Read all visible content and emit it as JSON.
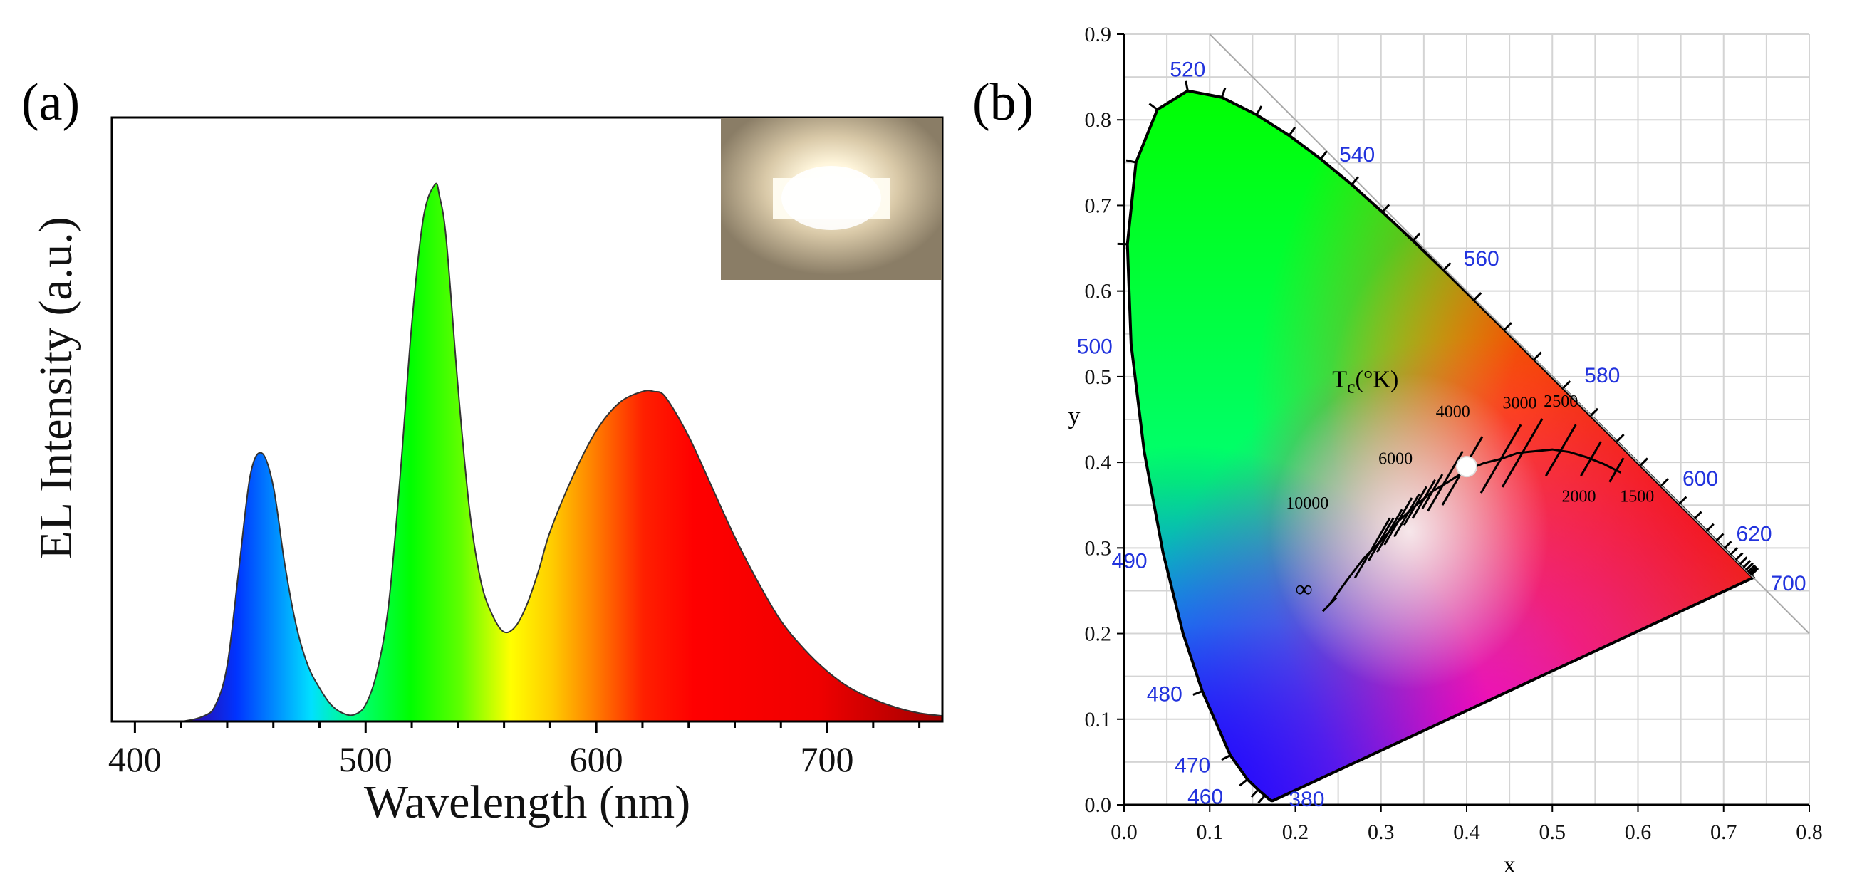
{
  "chart_data": [
    {
      "panel": "(a)",
      "type": "area",
      "title": "",
      "xlabel": "Wavelength (nm)",
      "ylabel": "EL Intensity (a.u.)",
      "xlim": [
        390,
        750
      ],
      "ylim": [
        0,
        1.08
      ],
      "xticks": [
        "400",
        "500",
        "600",
        "700"
      ],
      "x": [
        390,
        410,
        420,
        430,
        435,
        440,
        445,
        450,
        455,
        460,
        465,
        470,
        475,
        480,
        485,
        490,
        495,
        500,
        505,
        510,
        515,
        520,
        525,
        530,
        532,
        535,
        540,
        545,
        550,
        555,
        560,
        565,
        570,
        575,
        580,
        590,
        600,
        610,
        620,
        625,
        630,
        640,
        650,
        660,
        670,
        680,
        690,
        700,
        710,
        720,
        730,
        740,
        750
      ],
      "y": [
        0.0,
        0.0,
        0.0,
        0.01,
        0.03,
        0.1,
        0.27,
        0.44,
        0.48,
        0.42,
        0.28,
        0.17,
        0.1,
        0.06,
        0.03,
        0.015,
        0.012,
        0.03,
        0.09,
        0.21,
        0.44,
        0.71,
        0.9,
        0.96,
        0.94,
        0.86,
        0.6,
        0.38,
        0.25,
        0.19,
        0.16,
        0.17,
        0.21,
        0.27,
        0.34,
        0.44,
        0.52,
        0.57,
        0.59,
        0.59,
        0.58,
        0.51,
        0.42,
        0.33,
        0.25,
        0.18,
        0.13,
        0.09,
        0.06,
        0.04,
        0.025,
        0.015,
        0.01
      ],
      "inset": "photograph of lit LED device",
      "fill": "spectral color gradient under curve"
    },
    {
      "panel": "(b)",
      "type": "scatter",
      "title": "",
      "xlabel": "x",
      "ylabel": "y",
      "xlim": [
        0.0,
        0.8
      ],
      "ylim": [
        0.0,
        0.9
      ],
      "xticks": [
        "0.0",
        "0.1",
        "0.2",
        "0.3",
        "0.4",
        "0.5",
        "0.6",
        "0.7",
        "0.8"
      ],
      "yticks": [
        "0.0",
        "0.1",
        "0.2",
        "0.3",
        "0.4",
        "0.5",
        "0.6",
        "0.7",
        "0.8",
        "0.9"
      ],
      "grid": true,
      "locus_points": [
        {
          "label": "380",
          "x": 0.1741,
          "y": 0.005
        },
        {
          "label": "460",
          "x": 0.144,
          "y": 0.0297
        },
        {
          "label": "470",
          "x": 0.1241,
          "y": 0.0578
        },
        {
          "label": "480",
          "x": 0.0913,
          "y": 0.1327
        },
        {
          "label": "490",
          "x": 0.0454,
          "y": 0.295
        },
        {
          "label": "500",
          "x": 0.0082,
          "y": 0.5384
        },
        {
          "label": "520",
          "x": 0.0743,
          "y": 0.8338
        },
        {
          "label": "540",
          "x": 0.2296,
          "y": 0.7543
        },
        {
          "label": "560",
          "x": 0.3731,
          "y": 0.6245
        },
        {
          "label": "580",
          "x": 0.5125,
          "y": 0.4866
        },
        {
          "label": "600",
          "x": 0.627,
          "y": 0.3725
        },
        {
          "label": "620",
          "x": 0.6915,
          "y": 0.3083
        },
        {
          "label": "700",
          "x": 0.7347,
          "y": 0.2653
        }
      ],
      "planckian_locus_label": "T",
      "planckian_locus_label_sub": "c",
      "planckian_locus_label_unit": "(°K)",
      "cct_labels": [
        "10000",
        "6000",
        "4000",
        "3000",
        "2500",
        "2000",
        "1500",
        "∞"
      ],
      "measured_point": {
        "x": 0.4,
        "y": 0.395
      }
    }
  ],
  "panel_labels": {
    "a": "(a)",
    "b": "(b)"
  }
}
